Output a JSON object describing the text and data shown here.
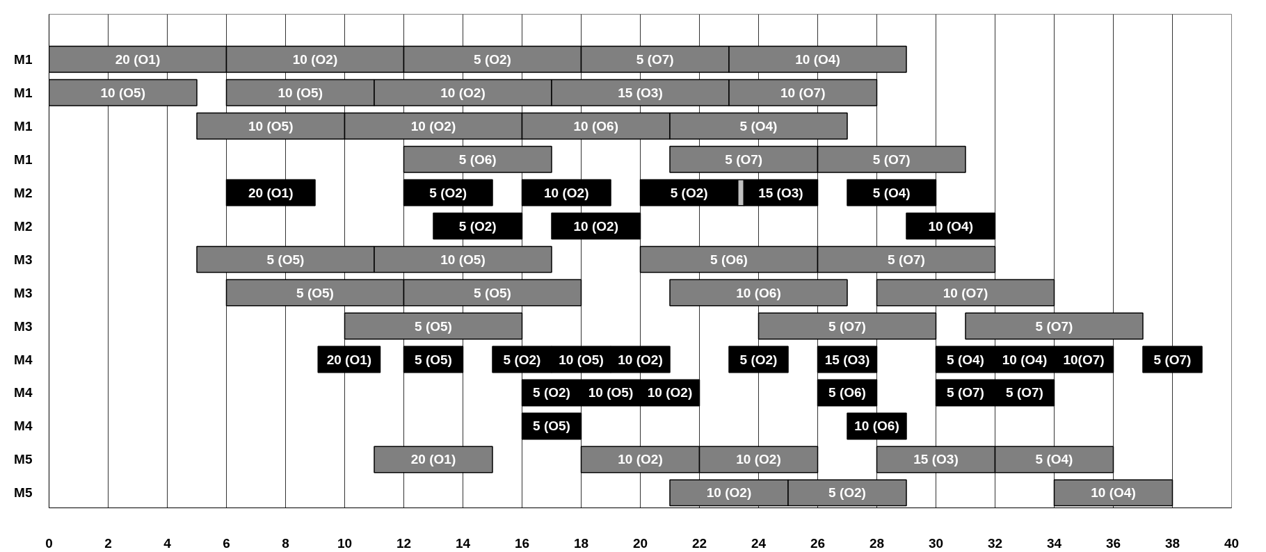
{
  "chart_data": {
    "type": "bar",
    "orientation": "horizontal",
    "categories": [
      "M1",
      "M1",
      "M1",
      "M1",
      "M2",
      "M2",
      "M3",
      "M3",
      "M3",
      "M4",
      "M4",
      "M4",
      "M5",
      "M5"
    ],
    "xlim": [
      0,
      40
    ],
    "xticks": [
      0,
      2,
      4,
      6,
      8,
      10,
      12,
      14,
      16,
      18,
      20,
      22,
      24,
      26,
      28,
      30,
      32,
      34,
      36,
      38,
      40
    ],
    "grid": "x",
    "annotations": [
      "20 (O1)",
      "10 (O5)",
      "10 (O5)",
      "5 (O6)",
      "20 (O1)",
      "5 (O2)",
      "5 (O5)",
      "5 (O5)",
      "5 (O5)",
      "20 (O1)",
      "5 (O2)",
      "5 (O5)",
      "20 (O1)",
      "10 (O2)",
      "10 (O2)",
      "10 (O5)",
      "10 (O2)",
      "5 (O7)",
      "5 (O2)",
      "10 (O2)",
      "10 (O5)",
      "5 (O5)",
      "5 (O7)",
      "5 (O5)",
      "10 (O5)",
      "10 (O6)",
      "10 (O2)",
      "5 (O2)",
      "5 (O2)",
      "10 (O2)",
      "10 (O6)",
      "5 (O7)",
      "10 (O2)",
      "10 (O4)",
      "5 (O6)",
      "10 (O6)",
      "5 (O7)",
      "5 (O2)",
      "10 (O2)",
      "10 (O2)",
      "10 (O4)",
      "5 (O7)",
      "15 (O3)",
      "5 (O4)",
      "5 (O2)",
      "5 (O7)",
      "10 (O7)",
      "10 (O5)",
      "5 (O6)",
      "15 (O3)",
      "10 (O4)",
      "10 (O7)",
      "10 (O2)",
      "5 (O7)",
      "5 (O4)",
      "15 (O3)",
      "5 (O2)",
      "5 (O7)",
      "5 (O4)",
      "15 (O3)",
      "5 (O4)",
      "10 (O4)",
      "10(O7)",
      "5 (O7)"
    ],
    "series": [
      {
        "base": [
          0,
          0,
          5,
          12,
          6,
          13,
          5,
          6,
          10,
          9.1,
          16,
          16,
          11,
          21
        ],
        "values": [
          6,
          5,
          5,
          5,
          3,
          3,
          6,
          6,
          6,
          2.1,
          2,
          2,
          4,
          4
        ],
        "colors": [
          "#808080",
          "#808080",
          "#808080",
          "#808080",
          "#000000",
          "#000000",
          "#808080",
          "#808080",
          "#808080",
          "#000000",
          "#000000",
          "#000000",
          "#808080",
          "#808080"
        ]
      },
      {
        "base": [
          6,
          6,
          10,
          21,
          12,
          17,
          11,
          12,
          24,
          12,
          18,
          27,
          18,
          25
        ],
        "values": [
          6,
          5,
          6,
          5,
          3,
          3,
          6,
          6,
          6,
          2,
          2,
          2,
          4,
          4
        ],
        "colors": [
          "#808080",
          "#808080",
          "#808080",
          "#808080",
          "#000000",
          "#000000",
          "#808080",
          "#808080",
          "#808080",
          "#000000",
          "#000000",
          "#000000",
          "#808080",
          "#808080"
        ]
      },
      {
        "base": [
          12,
          11,
          16,
          26,
          16,
          29,
          20,
          21,
          31,
          15,
          20,
          null,
          22,
          34
        ],
        "values": [
          6,
          6,
          5,
          5,
          3,
          3,
          6,
          6,
          6,
          2,
          2,
          null,
          4,
          4
        ],
        "colors": [
          "#808080",
          "#808080",
          "#808080",
          "#808080",
          "#000000",
          "#000000",
          "#808080",
          "#808080",
          "#808080",
          "#000000",
          "#000000",
          null,
          "#808080",
          "#808080"
        ]
      },
      {
        "base": [
          18,
          17,
          21,
          null,
          20,
          null,
          26,
          28,
          null,
          17,
          26,
          null,
          28,
          null
        ],
        "values": [
          5,
          6,
          6,
          null,
          3.3,
          null,
          6,
          6,
          null,
          2,
          2,
          null,
          4,
          null
        ],
        "colors": [
          "#808080",
          "#808080",
          "#808080",
          null,
          "#000000",
          null,
          "#808080",
          "#808080",
          null,
          "#000000",
          "#000000",
          null,
          "#808080",
          null
        ]
      },
      {
        "base": [
          23,
          23,
          null,
          null,
          null,
          null,
          null,
          null,
          null,
          19,
          30,
          null,
          32,
          null
        ],
        "values": [
          6,
          5,
          null,
          null,
          null,
          null,
          null,
          null,
          null,
          2,
          2,
          null,
          4,
          null
        ],
        "colors": [
          "#808080",
          "#808080",
          null,
          null,
          null,
          null,
          null,
          null,
          null,
          "#000000",
          "#000000",
          null,
          "#808080",
          null
        ]
      },
      {
        "base": [
          null,
          null,
          null,
          null,
          23.5,
          null,
          null,
          null,
          null,
          23,
          32,
          null,
          null,
          null
        ],
        "values": [
          null,
          null,
          null,
          null,
          2.5,
          null,
          null,
          null,
          null,
          2,
          2,
          null,
          null,
          null
        ],
        "colors": [
          null,
          null,
          null,
          null,
          "#000000",
          null,
          null,
          null,
          null,
          "#000000",
          "#000000",
          null,
          null,
          null
        ]
      },
      {
        "base": [
          null,
          null,
          null,
          null,
          27,
          null,
          null,
          null,
          null,
          26,
          null,
          null,
          null,
          null
        ],
        "values": [
          null,
          null,
          null,
          null,
          3,
          null,
          null,
          null,
          null,
          2,
          null,
          null,
          null,
          null
        ],
        "colors": [
          null,
          null,
          null,
          null,
          "#000000",
          null,
          null,
          null,
          null,
          "#000000",
          null,
          null,
          null,
          null
        ]
      },
      {
        "base": [
          null,
          null,
          null,
          null,
          null,
          null,
          null,
          null,
          null,
          30,
          null,
          null,
          null,
          null
        ],
        "values": [
          null,
          null,
          null,
          null,
          null,
          null,
          null,
          null,
          null,
          2,
          null,
          null,
          null,
          null
        ],
        "colors": [
          null,
          null,
          null,
          null,
          null,
          null,
          null,
          null,
          null,
          "#000000",
          null,
          null,
          null,
          null
        ]
      },
      {
        "base": [
          null,
          null,
          null,
          null,
          null,
          null,
          null,
          null,
          null,
          32,
          null,
          null,
          null,
          null
        ],
        "values": [
          null,
          null,
          null,
          null,
          null,
          null,
          null,
          null,
          null,
          2,
          null,
          null,
          null,
          null
        ],
        "colors": [
          null,
          null,
          null,
          null,
          null,
          null,
          null,
          null,
          null,
          "#000000",
          null,
          null,
          null,
          null
        ]
      },
      {
        "base": [
          null,
          null,
          null,
          null,
          null,
          null,
          null,
          null,
          null,
          34,
          null,
          null,
          null,
          null
        ],
        "values": [
          null,
          null,
          null,
          null,
          null,
          null,
          null,
          null,
          null,
          2,
          null,
          null,
          null,
          null
        ],
        "colors": [
          null,
          null,
          null,
          null,
          null,
          null,
          null,
          null,
          null,
          "#000000",
          null,
          null,
          null,
          null
        ]
      },
      {
        "base": [
          null,
          null,
          null,
          null,
          null,
          null,
          null,
          null,
          null,
          37,
          null,
          null,
          null,
          null
        ],
        "values": [
          null,
          null,
          null,
          null,
          null,
          null,
          null,
          null,
          null,
          2,
          null,
          null,
          null,
          null
        ],
        "colors": [
          null,
          null,
          null,
          null,
          null,
          null,
          null,
          null,
          null,
          "#000000",
          null,
          null,
          null,
          null
        ]
      },
      {
        "base": [
          null,
          null,
          null,
          null,
          23.3,
          null,
          null,
          null,
          null,
          null,
          null,
          null,
          null,
          null
        ],
        "values": [
          null,
          null,
          null,
          null,
          0.2,
          null,
          null,
          null,
          null,
          null,
          null,
          null,
          null,
          null
        ],
        "colors": [
          null,
          null,
          null,
          null,
          "#c0c0c0",
          null,
          null,
          null,
          null,
          null,
          null,
          null,
          null,
          null
        ]
      }
    ]
  }
}
